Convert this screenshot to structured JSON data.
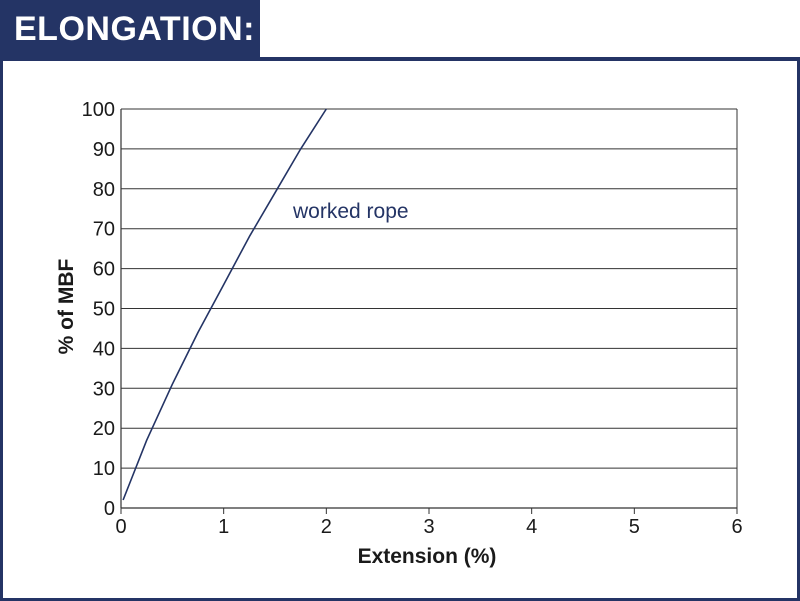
{
  "header": {
    "title": "ELONGATION:"
  },
  "colors": {
    "accent": "#243465",
    "gridline": "#333333",
    "curve": "#243465"
  },
  "chart_data": {
    "type": "line",
    "title": "",
    "xlabel": "Extension (%)",
    "ylabel": "% of MBF",
    "xlim": [
      0,
      6
    ],
    "ylim": [
      0,
      100
    ],
    "x_ticks": [
      "0",
      "1",
      "2",
      "3",
      "4",
      "5",
      "6"
    ],
    "y_ticks": [
      "0",
      "10",
      "20",
      "30",
      "40",
      "50",
      "60",
      "70",
      "80",
      "90",
      "100"
    ],
    "grid": "horizontal",
    "series": [
      {
        "name": "worked rope",
        "x": [
          0.02,
          0.25,
          0.5,
          0.75,
          1.0,
          1.25,
          1.5,
          1.75,
          2.0
        ],
        "y": [
          2,
          17,
          31,
          44,
          56,
          68,
          79,
          90,
          100
        ]
      }
    ]
  }
}
